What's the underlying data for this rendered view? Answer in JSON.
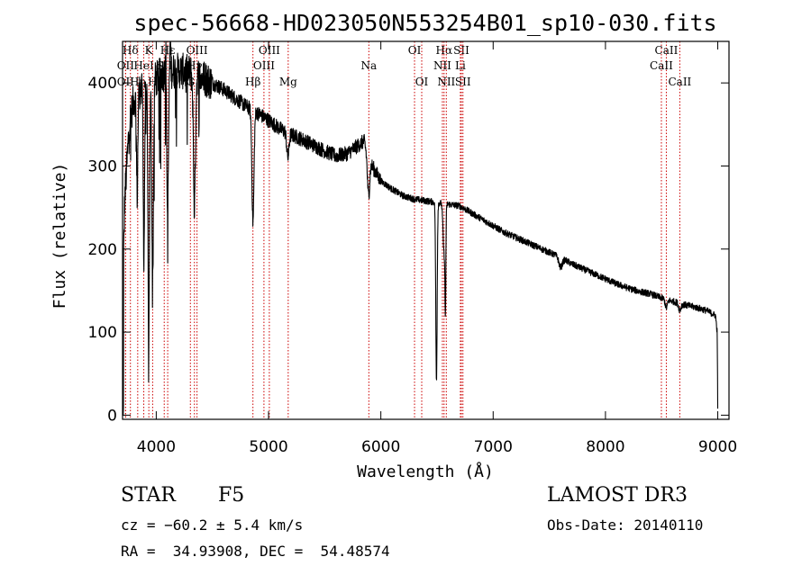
{
  "chart_data": {
    "type": "line",
    "title": "spec-56668-HD023050N553254B01_sp10-030.fits",
    "xlabel": "Wavelength (Å)",
    "ylabel": "Flux (relative)",
    "xlim": [
      3700,
      9100
    ],
    "ylim": [
      -5,
      450
    ],
    "xticks": [
      4000,
      5000,
      6000,
      7000,
      8000,
      9000
    ],
    "yticks": [
      0,
      100,
      200,
      300,
      400
    ],
    "tick_color": "#000000",
    "series_color": "#000000",
    "line_color": "#cc0000",
    "continuum": [
      [
        3700,
        0
      ],
      [
        3705,
        160
      ],
      [
        3720,
        260
      ],
      [
        3760,
        350
      ],
      [
        3800,
        380
      ],
      [
        3850,
        390
      ],
      [
        3900,
        395
      ],
      [
        3950,
        400
      ],
      [
        4000,
        405
      ],
      [
        4050,
        410
      ],
      [
        4100,
        412
      ],
      [
        4150,
        414
      ],
      [
        4200,
        415
      ],
      [
        4300,
        412
      ],
      [
        4400,
        408
      ],
      [
        4500,
        400
      ],
      [
        4600,
        392
      ],
      [
        4700,
        382
      ],
      [
        4800,
        372
      ],
      [
        4900,
        364
      ],
      [
        5000,
        355
      ],
      [
        5100,
        345
      ],
      [
        5200,
        338
      ],
      [
        5300,
        332
      ],
      [
        5400,
        325
      ],
      [
        5500,
        318
      ],
      [
        5600,
        312
      ],
      [
        5700,
        315
      ],
      [
        5800,
        325
      ],
      [
        5850,
        330
      ],
      [
        5900,
        305
      ],
      [
        6000,
        282
      ],
      [
        6100,
        272
      ],
      [
        6200,
        264
      ],
      [
        6300,
        260
      ],
      [
        6400,
        258
      ],
      [
        6500,
        256
      ],
      [
        6600,
        254
      ],
      [
        6700,
        252
      ],
      [
        6800,
        244
      ],
      [
        6900,
        236
      ],
      [
        7000,
        228
      ],
      [
        7100,
        220
      ],
      [
        7200,
        214
      ],
      [
        7300,
        208
      ],
      [
        7400,
        202
      ],
      [
        7500,
        196
      ],
      [
        7600,
        190
      ],
      [
        7700,
        182
      ],
      [
        7800,
        176
      ],
      [
        7900,
        170
      ],
      [
        8000,
        164
      ],
      [
        8100,
        158
      ],
      [
        8200,
        153
      ],
      [
        8300,
        149
      ],
      [
        8400,
        146
      ],
      [
        8500,
        141
      ],
      [
        8600,
        137
      ],
      [
        8700,
        133
      ],
      [
        8800,
        130
      ],
      [
        8900,
        126
      ],
      [
        8980,
        120
      ],
      [
        8995,
        100
      ],
      [
        9000,
        10
      ]
    ],
    "absorption_features": [
      {
        "x": 3830,
        "depth": 120,
        "width": 6
      },
      {
        "x": 3890,
        "depth": 200,
        "width": 6
      },
      {
        "x": 3933,
        "depth": 300,
        "width": 7
      },
      {
        "x": 3968,
        "depth": 240,
        "width": 7
      },
      {
        "x": 4101,
        "depth": 170,
        "width": 8
      },
      {
        "x": 4340,
        "depth": 160,
        "width": 9
      },
      {
        "x": 4861,
        "depth": 135,
        "width": 9
      },
      {
        "x": 5172,
        "depth": 30,
        "width": 10
      },
      {
        "x": 5890,
        "depth": 45,
        "width": 10
      },
      {
        "x": 6495,
        "depth": 215,
        "width": 6
      },
      {
        "x": 6563,
        "depth": 60,
        "width": 9
      },
      {
        "x": 6575,
        "depth": 110,
        "width": 4
      },
      {
        "x": 7600,
        "depth": 12,
        "width": 15
      },
      {
        "x": 8542,
        "depth": 10,
        "width": 10
      },
      {
        "x": 8662,
        "depth": 8,
        "width": 10
      }
    ],
    "emission_features": [
      {
        "x": 4085,
        "height": 50,
        "width": 5
      },
      {
        "x": 4125,
        "height": 40,
        "width": 5
      }
    ],
    "spectral_lines": [
      {
        "label": "Hδ",
        "x": 3770,
        "row": 0
      },
      {
        "label": "OII",
        "x": 3727,
        "row": 1
      },
      {
        "label": "OII",
        "x": 3727,
        "row": 2
      },
      {
        "label": "Hη",
        "x": 3835,
        "row": 2
      },
      {
        "label": "HeI",
        "x": 3889,
        "row": 1
      },
      {
        "label": "K",
        "x": 3934,
        "row": 0
      },
      {
        "label": "H",
        "x": 3968,
        "row": 2
      },
      {
        "label": "SII",
        "x": 4071,
        "row": 1
      },
      {
        "label": "Hε",
        "x": 4102,
        "row": 0
      },
      {
        "label": "OIII",
        "x": 4363,
        "row": 0
      },
      {
        "label": "Hγ",
        "x": 4340,
        "row": 1
      },
      {
        "label": "G",
        "x": 4304,
        "row": 2
      },
      {
        "label": "Hβ",
        "x": 4861,
        "row": 2
      },
      {
        "label": "OIII",
        "x": 4959,
        "row": 1
      },
      {
        "label": "OIII",
        "x": 5007,
        "row": 0
      },
      {
        "label": "Mg",
        "x": 5175,
        "row": 2
      },
      {
        "label": "Na",
        "x": 5893,
        "row": 1
      },
      {
        "label": "OI",
        "x": 6300,
        "row": 0
      },
      {
        "label": "OI",
        "x": 6364,
        "row": 2
      },
      {
        "label": "Hα",
        "x": 6563,
        "row": 0
      },
      {
        "label": "NII",
        "x": 6548,
        "row": 1
      },
      {
        "label": "NII",
        "x": 6583,
        "row": 2
      },
      {
        "label": "SII",
        "x": 6717,
        "row": 0
      },
      {
        "label": "Li",
        "x": 6708,
        "row": 1
      },
      {
        "label": "SII",
        "x": 6731,
        "row": 2
      },
      {
        "label": "CaII",
        "x": 8542,
        "row": 0
      },
      {
        "label": "CaII",
        "x": 8498,
        "row": 1
      },
      {
        "label": "CaII",
        "x": 8662,
        "row": 2
      }
    ]
  },
  "info": {
    "object_class": "STAR",
    "subclass": "F5",
    "survey": "LAMOST DR3",
    "redshift": "cz = −60.2 ± 5.4 km/s",
    "obs_date": "Obs-Date: 20140110",
    "coords": "RA =  34.93908, DEC =  54.48574"
  }
}
